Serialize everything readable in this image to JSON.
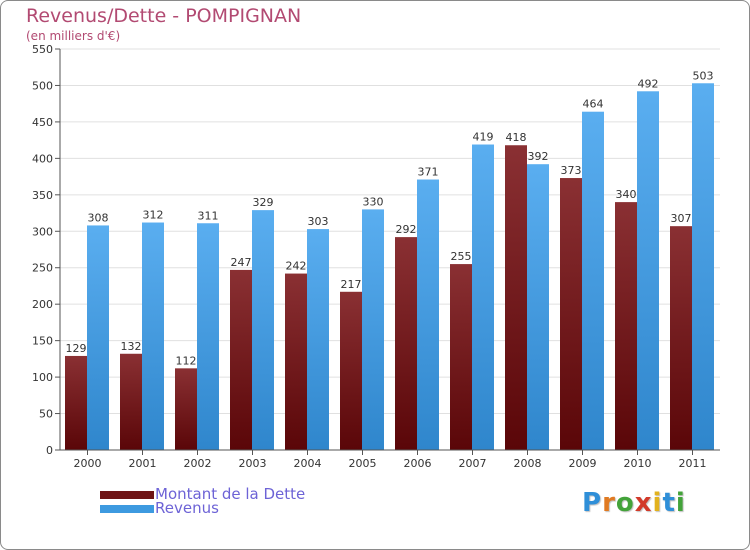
{
  "title": "Revenus/Dette - POMPIGNAN",
  "subtitle": "(en milliers d'€)",
  "colors": {
    "dette": "#6e1315",
    "revenus": "#3d9ae0",
    "title": "#b24a72",
    "legend_text": "#6d63d6"
  },
  "legend": {
    "dette": "Montant de la Dette",
    "revenus": "Revenus"
  },
  "logo": "Proxiti",
  "chart_data": {
    "type": "bar",
    "categories": [
      "2000",
      "2001",
      "2002",
      "2003",
      "2004",
      "2005",
      "2006",
      "2007",
      "2008",
      "2009",
      "2010",
      "2011"
    ],
    "series": [
      {
        "name": "Montant de la Dette",
        "values": [
          129,
          132,
          112,
          247,
          242,
          217,
          292,
          255,
          418,
          373,
          340,
          307
        ]
      },
      {
        "name": "Revenus",
        "values": [
          308,
          312,
          311,
          329,
          303,
          330,
          371,
          419,
          392,
          464,
          492,
          503
        ]
      }
    ],
    "yticks": [
      0,
      50,
      100,
      150,
      200,
      250,
      300,
      350,
      400,
      450,
      500,
      550
    ],
    "ylim": [
      0,
      550
    ],
    "grid": true,
    "legend_position": "bottom-left"
  }
}
